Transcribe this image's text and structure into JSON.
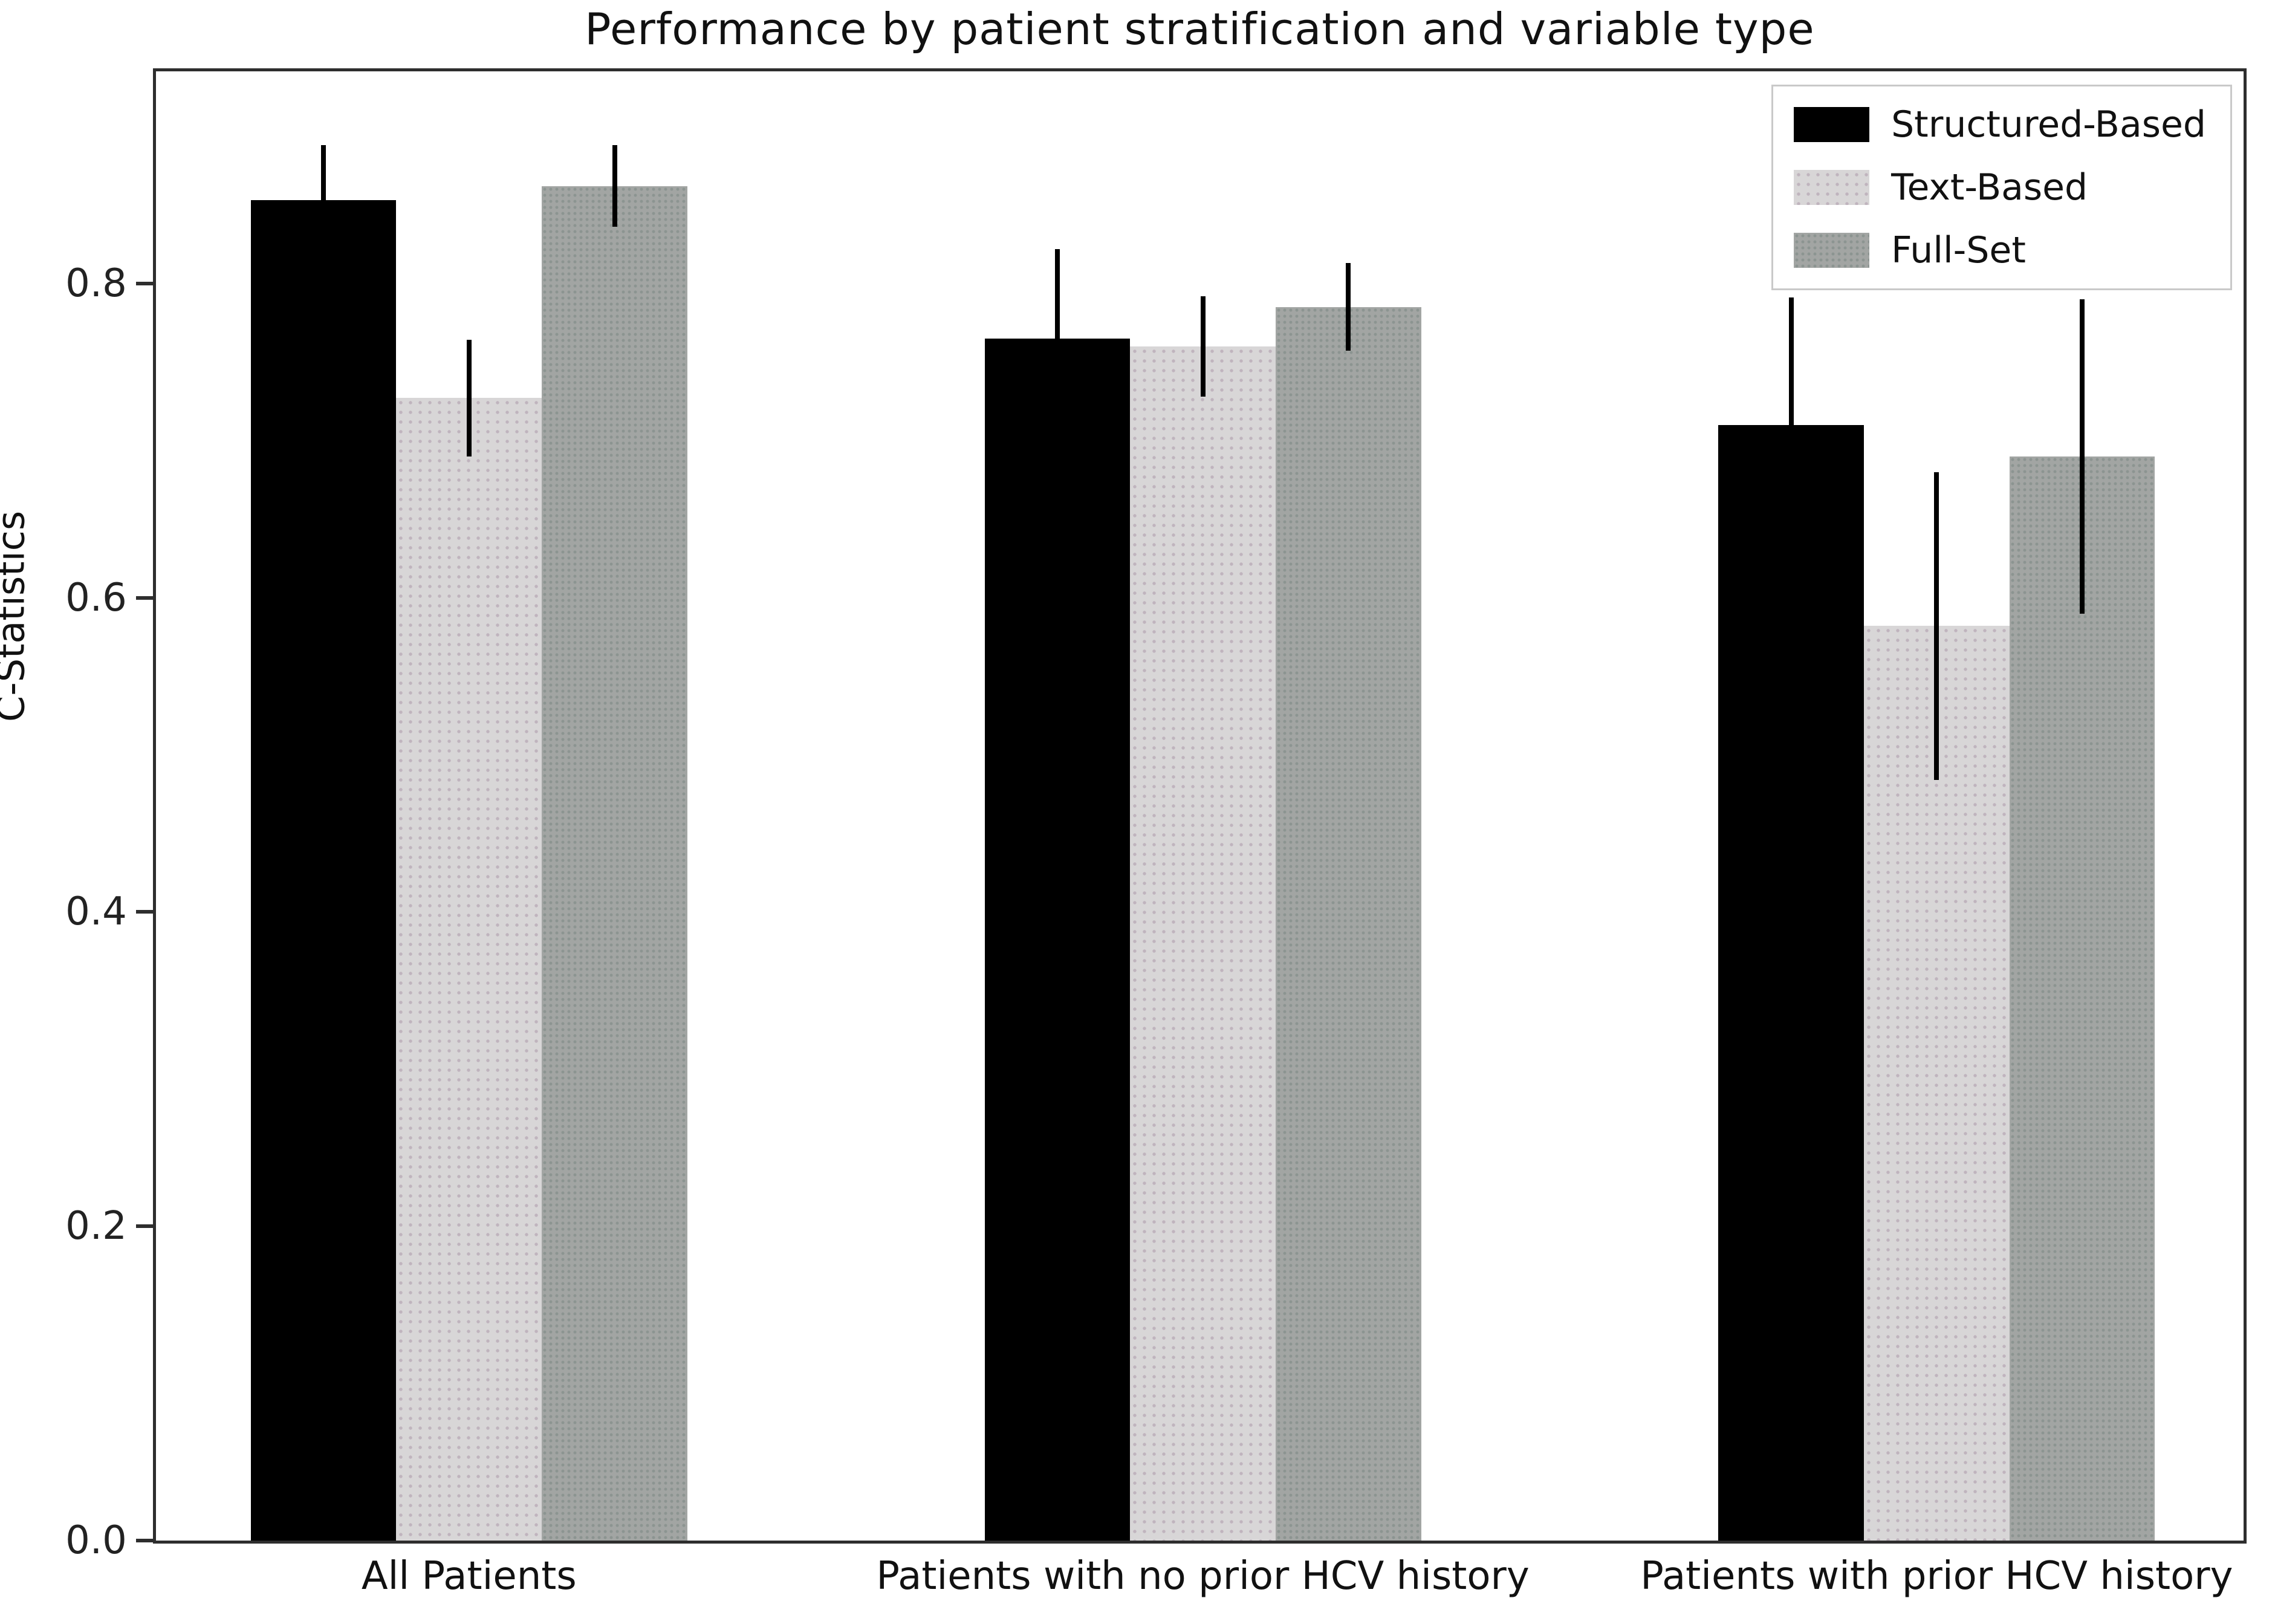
{
  "figure": {
    "title": "Performance by patient stratification and variable type",
    "ylabel": "C-Statistics"
  },
  "chart_data": {
    "type": "bar",
    "title": "Performance by patient stratification and variable type",
    "xlabel": "",
    "ylabel": "C-Statistics",
    "categories": [
      "All Patients",
      "Patients with no prior HCV history",
      "Patients with prior HCV history"
    ],
    "series": [
      {
        "name": "Structured-Based",
        "color": "#000000",
        "pattern": "solid",
        "values": [
          0.853,
          0.765,
          0.71
        ],
        "error_low": [
          0.818,
          0.708,
          0.629
        ],
        "error_high": [
          0.888,
          0.822,
          0.791
        ]
      },
      {
        "name": "Text-Based",
        "color": "#d8d6d7",
        "pattern": "dots",
        "values": [
          0.727,
          0.76,
          0.582
        ],
        "error_low": [
          0.69,
          0.728,
          0.484
        ],
        "error_high": [
          0.764,
          0.792,
          0.68
        ]
      },
      {
        "name": "Full-Set",
        "color": "#a2a5a3",
        "pattern": "dots-dark",
        "values": [
          0.862,
          0.785,
          0.69
        ],
        "error_low": [
          0.836,
          0.757,
          0.59
        ],
        "error_high": [
          0.888,
          0.813,
          0.79
        ]
      }
    ],
    "yticks": [
      "0.0",
      "0.2",
      "0.4",
      "0.6",
      "0.8"
    ],
    "ylim": [
      0,
      0.935
    ],
    "grid": false,
    "legend_position": "upper right",
    "error_bar_color": "#000000"
  }
}
